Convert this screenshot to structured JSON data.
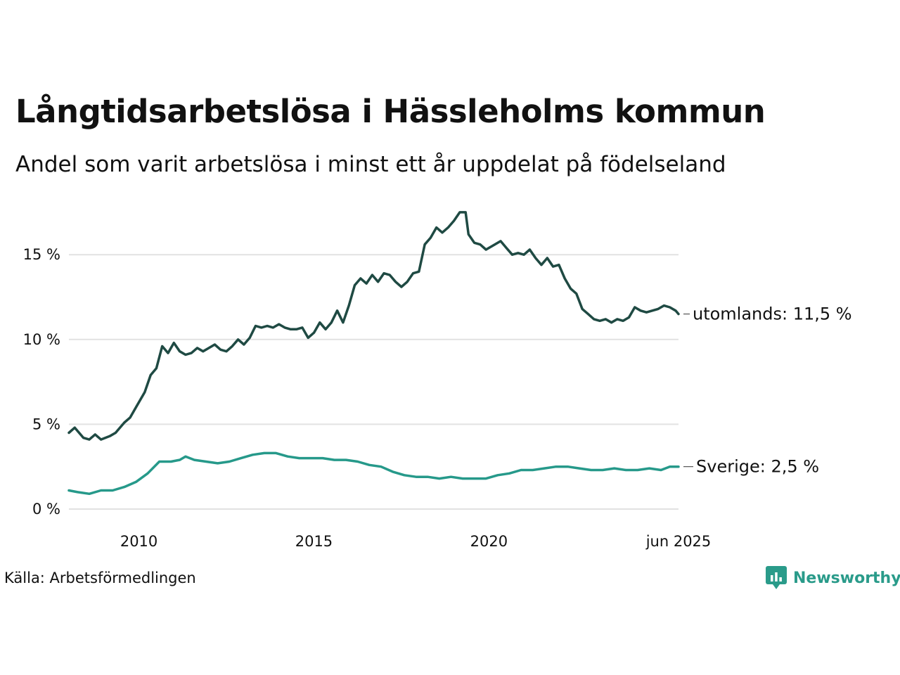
{
  "header": {
    "title": "Långtidsarbetslösa i Hässleholms kommun",
    "subtitle": "Andel som varit arbetslösa i minst ett år uppdelat på födelseland"
  },
  "footer": {
    "source": "Källa: Arbetsförmedlingen",
    "brand": "Newsworthy"
  },
  "colors": {
    "utomlands": "#1f4a43",
    "sverige": "#26998a",
    "grid": "#e2e2e2",
    "brand": "#2a9b8a"
  },
  "chart_data": {
    "type": "line",
    "title": "Långtidsarbetslösa i Hässleholms kommun",
    "subtitle": "Andel som varit arbetslösa i minst ett år uppdelat på födelseland",
    "xlabel": "",
    "ylabel": "",
    "x_range": [
      "2008-01",
      "2025-06"
    ],
    "ylim": [
      0,
      18
    ],
    "y_ticks": [
      0,
      5,
      10,
      15
    ],
    "y_tick_labels": [
      "0 %",
      "5 %",
      "10 %",
      "15 %"
    ],
    "x_ticks": [
      "2010-01",
      "2015-01",
      "2020-01",
      "2025-06"
    ],
    "x_tick_labels": [
      "2010",
      "2015",
      "2020",
      "jun 2025"
    ],
    "grid": true,
    "legend": "end-of-line labels",
    "series": [
      {
        "name": "utomlands",
        "end_label": "utomlands: 11,5 %",
        "points": [
          [
            "2008-01",
            4.5
          ],
          [
            "2008-03",
            4.8
          ],
          [
            "2008-06",
            4.2
          ],
          [
            "2008-08",
            4.1
          ],
          [
            "2008-10",
            4.4
          ],
          [
            "2008-12",
            4.1
          ],
          [
            "2009-03",
            4.3
          ],
          [
            "2009-05",
            4.5
          ],
          [
            "2009-08",
            5.1
          ],
          [
            "2009-10",
            5.4
          ],
          [
            "2009-12",
            6.0
          ],
          [
            "2010-03",
            6.9
          ],
          [
            "2010-05",
            7.9
          ],
          [
            "2010-07",
            8.3
          ],
          [
            "2010-09",
            9.6
          ],
          [
            "2010-11",
            9.2
          ],
          [
            "2011-01",
            9.8
          ],
          [
            "2011-03",
            9.3
          ],
          [
            "2011-05",
            9.1
          ],
          [
            "2011-07",
            9.2
          ],
          [
            "2011-09",
            9.5
          ],
          [
            "2011-11",
            9.3
          ],
          [
            "2012-01",
            9.5
          ],
          [
            "2012-03",
            9.7
          ],
          [
            "2012-05",
            9.4
          ],
          [
            "2012-07",
            9.3
          ],
          [
            "2012-09",
            9.6
          ],
          [
            "2012-11",
            10.0
          ],
          [
            "2013-01",
            9.7
          ],
          [
            "2013-03",
            10.1
          ],
          [
            "2013-05",
            10.8
          ],
          [
            "2013-07",
            10.7
          ],
          [
            "2013-09",
            10.8
          ],
          [
            "2013-11",
            10.7
          ],
          [
            "2014-01",
            10.9
          ],
          [
            "2014-03",
            10.7
          ],
          [
            "2014-05",
            10.6
          ],
          [
            "2014-07",
            10.6
          ],
          [
            "2014-09",
            10.7
          ],
          [
            "2014-11",
            10.1
          ],
          [
            "2015-01",
            10.4
          ],
          [
            "2015-03",
            11.0
          ],
          [
            "2015-05",
            10.6
          ],
          [
            "2015-07",
            11.0
          ],
          [
            "2015-09",
            11.7
          ],
          [
            "2015-11",
            11.0
          ],
          [
            "2016-01",
            12.0
          ],
          [
            "2016-03",
            13.2
          ],
          [
            "2016-05",
            13.6
          ],
          [
            "2016-07",
            13.3
          ],
          [
            "2016-09",
            13.8
          ],
          [
            "2016-11",
            13.4
          ],
          [
            "2017-01",
            13.9
          ],
          [
            "2017-03",
            13.8
          ],
          [
            "2017-05",
            13.4
          ],
          [
            "2017-07",
            13.1
          ],
          [
            "2017-09",
            13.4
          ],
          [
            "2017-11",
            13.9
          ],
          [
            "2018-01",
            14.0
          ],
          [
            "2018-03",
            15.6
          ],
          [
            "2018-05",
            16.0
          ],
          [
            "2018-07",
            16.6
          ],
          [
            "2018-09",
            16.3
          ],
          [
            "2018-11",
            16.6
          ],
          [
            "2019-01",
            17.0
          ],
          [
            "2019-03",
            17.5
          ],
          [
            "2019-05",
            17.5
          ],
          [
            "2019-06",
            16.2
          ],
          [
            "2019-08",
            15.7
          ],
          [
            "2019-10",
            15.6
          ],
          [
            "2019-12",
            15.3
          ],
          [
            "2020-03",
            15.6
          ],
          [
            "2020-05",
            15.8
          ],
          [
            "2020-07",
            15.4
          ],
          [
            "2020-09",
            15.0
          ],
          [
            "2020-11",
            15.1
          ],
          [
            "2021-01",
            15.0
          ],
          [
            "2021-03",
            15.3
          ],
          [
            "2021-05",
            14.8
          ],
          [
            "2021-07",
            14.4
          ],
          [
            "2021-09",
            14.8
          ],
          [
            "2021-11",
            14.3
          ],
          [
            "2022-01",
            14.4
          ],
          [
            "2022-03",
            13.6
          ],
          [
            "2022-05",
            13.0
          ],
          [
            "2022-07",
            12.7
          ],
          [
            "2022-09",
            11.8
          ],
          [
            "2022-11",
            11.5
          ],
          [
            "2023-01",
            11.2
          ],
          [
            "2023-03",
            11.1
          ],
          [
            "2023-05",
            11.2
          ],
          [
            "2023-07",
            11.0
          ],
          [
            "2023-09",
            11.2
          ],
          [
            "2023-11",
            11.1
          ],
          [
            "2024-01",
            11.3
          ],
          [
            "2024-03",
            11.9
          ],
          [
            "2024-05",
            11.7
          ],
          [
            "2024-07",
            11.6
          ],
          [
            "2024-09",
            11.7
          ],
          [
            "2024-11",
            11.8
          ],
          [
            "2025-01",
            12.0
          ],
          [
            "2025-03",
            11.9
          ],
          [
            "2025-05",
            11.7
          ],
          [
            "2025-06",
            11.5
          ]
        ]
      },
      {
        "name": "Sverige",
        "end_label": "Sverige:  2,5 %",
        "points": [
          [
            "2008-01",
            1.1
          ],
          [
            "2008-04",
            1.0
          ],
          [
            "2008-08",
            0.9
          ],
          [
            "2008-12",
            1.1
          ],
          [
            "2009-04",
            1.1
          ],
          [
            "2009-08",
            1.3
          ],
          [
            "2009-12",
            1.6
          ],
          [
            "2010-04",
            2.1
          ],
          [
            "2010-08",
            2.8
          ],
          [
            "2010-12",
            2.8
          ],
          [
            "2011-03",
            2.9
          ],
          [
            "2011-05",
            3.1
          ],
          [
            "2011-08",
            2.9
          ],
          [
            "2011-12",
            2.8
          ],
          [
            "2012-04",
            2.7
          ],
          [
            "2012-08",
            2.8
          ],
          [
            "2012-12",
            3.0
          ],
          [
            "2013-04",
            3.2
          ],
          [
            "2013-08",
            3.3
          ],
          [
            "2013-12",
            3.3
          ],
          [
            "2014-04",
            3.1
          ],
          [
            "2014-08",
            3.0
          ],
          [
            "2014-12",
            3.0
          ],
          [
            "2015-04",
            3.0
          ],
          [
            "2015-08",
            2.9
          ],
          [
            "2015-12",
            2.9
          ],
          [
            "2016-04",
            2.8
          ],
          [
            "2016-08",
            2.6
          ],
          [
            "2016-12",
            2.5
          ],
          [
            "2017-04",
            2.2
          ],
          [
            "2017-08",
            2.0
          ],
          [
            "2017-12",
            1.9
          ],
          [
            "2018-04",
            1.9
          ],
          [
            "2018-08",
            1.8
          ],
          [
            "2018-12",
            1.9
          ],
          [
            "2019-04",
            1.8
          ],
          [
            "2019-08",
            1.8
          ],
          [
            "2019-12",
            1.8
          ],
          [
            "2020-04",
            2.0
          ],
          [
            "2020-08",
            2.1
          ],
          [
            "2020-12",
            2.3
          ],
          [
            "2021-04",
            2.3
          ],
          [
            "2021-08",
            2.4
          ],
          [
            "2021-12",
            2.5
          ],
          [
            "2022-04",
            2.5
          ],
          [
            "2022-08",
            2.4
          ],
          [
            "2022-12",
            2.3
          ],
          [
            "2023-04",
            2.3
          ],
          [
            "2023-08",
            2.4
          ],
          [
            "2023-12",
            2.3
          ],
          [
            "2024-04",
            2.3
          ],
          [
            "2024-08",
            2.4
          ],
          [
            "2024-12",
            2.3
          ],
          [
            "2025-03",
            2.5
          ],
          [
            "2025-06",
            2.5
          ]
        ]
      }
    ]
  }
}
